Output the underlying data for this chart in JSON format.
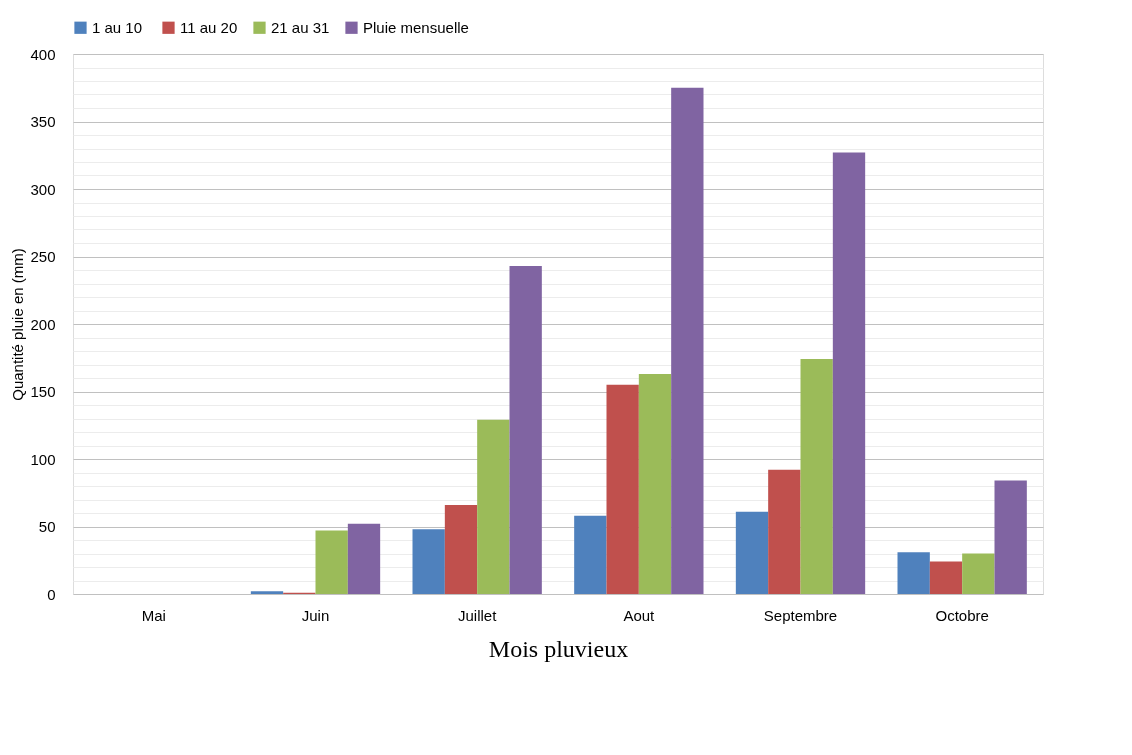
{
  "chart_data": {
    "type": "bar",
    "xlabel": "Mois pluvieux",
    "ylabel": "Quantité pluie  en (mm)",
    "categories": [
      "Mai",
      "Juin",
      "Juillet",
      "Aout",
      "Septembre",
      "Octobre"
    ],
    "series": [
      {
        "name": "1  au 10",
        "color": "#4f81bd",
        "values": [
          0,
          2,
          48,
          58,
          61,
          31
        ]
      },
      {
        "name": "11 au 20",
        "color": "#c0504d",
        "values": [
          0,
          1,
          66,
          155,
          92,
          24
        ]
      },
      {
        "name": "21 au 31",
        "color": "#9bbb59",
        "values": [
          0,
          47,
          129,
          163,
          174,
          30
        ]
      },
      {
        "name": "Pluie mensuelle",
        "color": "#8064a2",
        "values": [
          0,
          52,
          243,
          375,
          327,
          84
        ]
      }
    ],
    "ylim": [
      0,
      400
    ],
    "yticks": [
      0,
      {
        "value": 10,
        "label": null
      },
      {
        "value": 20,
        "label": null
      },
      {
        "value": 30,
        "label": null
      },
      {
        "value": 40,
        "label": null
      },
      50,
      {
        "value": 60,
        "label": null
      },
      {
        "value": 70,
        "label": null
      },
      {
        "value": 80,
        "label": null
      },
      {
        "value": 90,
        "label": null
      },
      100,
      {
        "value": 110,
        "label": null
      },
      {
        "value": 120,
        "label": null
      },
      {
        "value": 130,
        "label": null
      },
      {
        "value": 140,
        "label": null
      },
      150,
      {
        "value": 160,
        "label": null
      },
      {
        "value": 170,
        "label": null
      },
      {
        "value": 180,
        "label": null
      },
      {
        "value": 190,
        "label": null
      },
      200,
      {
        "value": 210,
        "label": null
      },
      {
        "value": 220,
        "label": null
      },
      {
        "value": 230,
        "label": null
      },
      {
        "value": 240,
        "label": null
      },
      250,
      {
        "value": 260,
        "label": null
      },
      {
        "value": 270,
        "label": null
      },
      {
        "value": 280,
        "label": null
      },
      {
        "value": 290,
        "label": null
      },
      300,
      {
        "value": 310,
        "label": null
      },
      {
        "value": 320,
        "label": null
      },
      {
        "value": 330,
        "label": null
      },
      {
        "value": 340,
        "label": null
      },
      350,
      {
        "value": 360,
        "label": null
      },
      {
        "value": 370,
        "label": null
      },
      {
        "value": 380,
        "label": null
      },
      {
        "value": 390,
        "label": null
      },
      400
    ],
    "grid": "y",
    "legend": "top"
  }
}
